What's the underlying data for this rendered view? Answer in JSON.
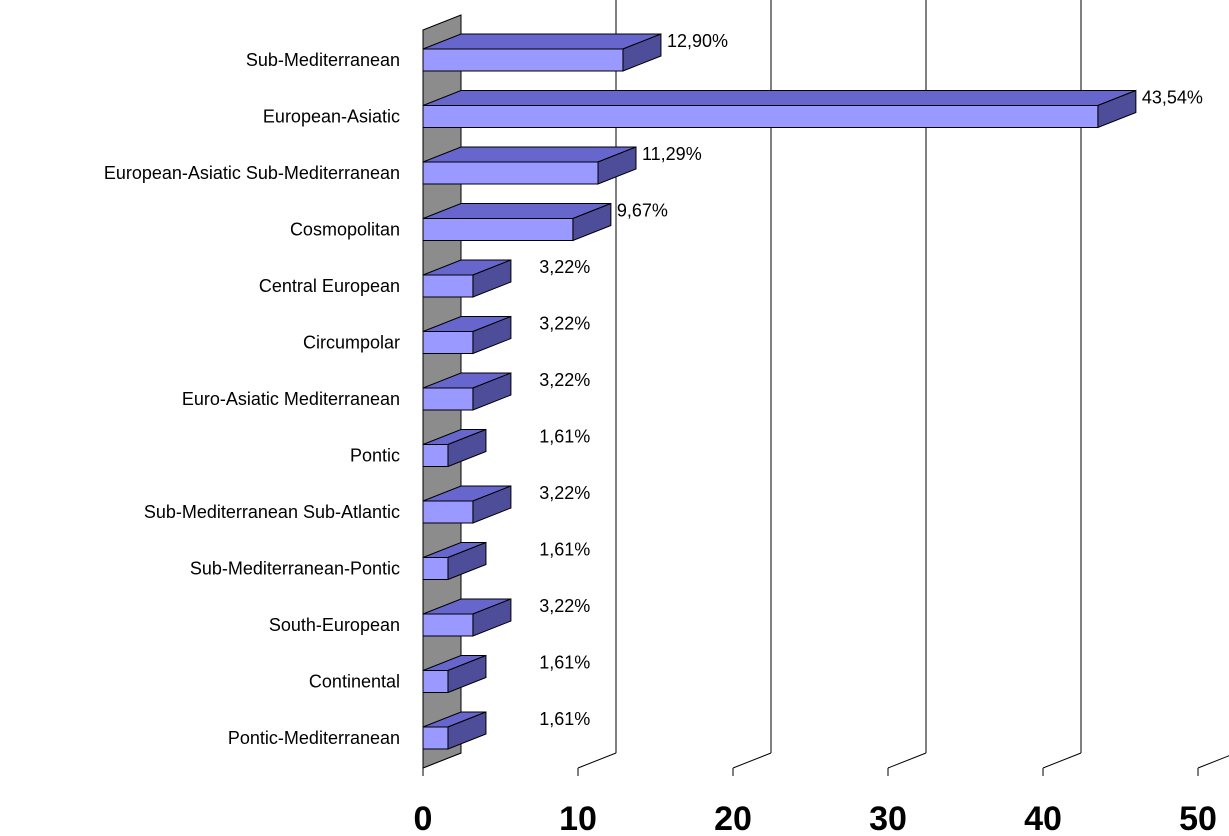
{
  "chart_data": {
    "type": "bar",
    "orientation": "horizontal",
    "three_d": true,
    "categories": [
      "Sub-Mediterranean",
      "European-Asiatic",
      "European-Asiatic Sub-Mediterranean",
      "Cosmopolitan",
      "Central European",
      "Circumpolar",
      "Euro-Asiatic Mediterranean",
      "Pontic",
      "Sub-Mediterranean Sub-Atlantic",
      "Sub-Mediterranean-Pontic",
      "South-European",
      "Continental",
      "Pontic-Mediterranean"
    ],
    "values": [
      12.9,
      43.54,
      11.29,
      9.67,
      3.22,
      3.22,
      3.22,
      1.61,
      3.22,
      1.61,
      3.22,
      1.61,
      1.61
    ],
    "data_labels": [
      "12,90%",
      "43,54%",
      "11,29%",
      "9,67%",
      "3,22%",
      "3,22%",
      "3,22%",
      "1,61%",
      "3,22%",
      "1,61%",
      "3,22%",
      "1,61%",
      "1,61%"
    ],
    "xlim": [
      0,
      50
    ],
    "x_ticks": [
      0,
      10,
      20,
      30,
      40,
      50
    ],
    "x_tick_labels": [
      "0",
      "10",
      "20",
      "30",
      "40",
      "50"
    ],
    "grid": true,
    "legend": "none",
    "colors": {
      "bar_front": "#9999FF",
      "bar_top": "#6666CC",
      "bar_side": "#4D4D99",
      "wall": "#8C8C8C",
      "outline": "#000000"
    }
  }
}
